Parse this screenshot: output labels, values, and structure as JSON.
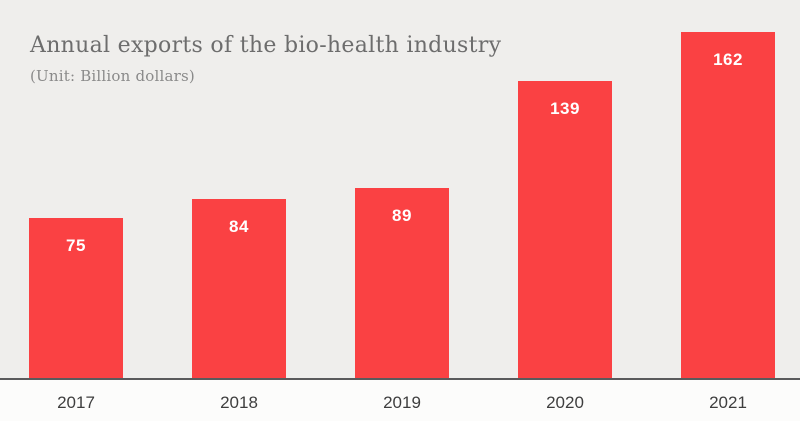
{
  "header": {
    "title": "Annual exports of the bio-health industry",
    "subtitle": "(Unit: Billion dollars)"
  },
  "chart_data": {
    "type": "bar",
    "title": "Annual exports of the bio-health industry",
    "subtitle": "(Unit: Billion dollars)",
    "unit": "Billion dollars",
    "categories": [
      "2017",
      "2018",
      "2019",
      "2020",
      "2021"
    ],
    "values": [
      75,
      84,
      89,
      139,
      162
    ],
    "value_labels": [
      "75",
      "84",
      "89",
      "139",
      "162"
    ],
    "ylim": [
      0,
      177
    ],
    "grid": false,
    "legend": false,
    "value_label_position": "inside-top",
    "colors": {
      "bar": "#fa4143",
      "value_label": "#ffffff",
      "plot_background": "#efeeec",
      "page_background": "#fcfcfb",
      "axis_line": "#5a5a5c",
      "title_text": "#6d6d6d",
      "subtitle_text": "#8a8a8a",
      "tick_label": "#3e3e3e"
    }
  }
}
